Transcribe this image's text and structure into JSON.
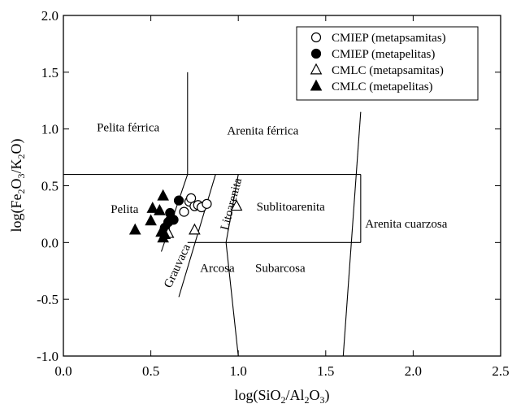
{
  "chart_data": {
    "type": "scatter",
    "title": "",
    "xlabel": "log(SiO2/Al2O3)",
    "ylabel": "log(Fe2O3/K2O)",
    "xlim": [
      0.0,
      2.5
    ],
    "ylim": [
      -1.0,
      2.0
    ],
    "x_ticks": [
      "0.0",
      "0.5",
      "1.0",
      "1.5",
      "2.0",
      "2.5"
    ],
    "y_ticks": [
      "-1.0",
      "-0.5",
      "0.0",
      "0.5",
      "1.0",
      "1.5",
      "2.0"
    ],
    "grid": false,
    "legend_position": "top-right",
    "field_labels": [
      {
        "text": "Pelita férrica",
        "x": 0.37,
        "y": 0.98,
        "rotate": 0
      },
      {
        "text": "Arenita férrica",
        "x": 1.14,
        "y": 0.95,
        "rotate": 0
      },
      {
        "text": "Pelita",
        "x": 0.35,
        "y": 0.26,
        "rotate": 0
      },
      {
        "text": "Litoarenita",
        "x": 0.98,
        "y": 0.33,
        "rotate": -75
      },
      {
        "text": "Sublitoarenita",
        "x": 1.3,
        "y": 0.28,
        "rotate": 0
      },
      {
        "text": "Arenita cuarzosa",
        "x": 1.96,
        "y": 0.13,
        "rotate": 0
      },
      {
        "text": "Grauvaca",
        "x": 0.67,
        "y": -0.22,
        "rotate": -65
      },
      {
        "text": "Arcosa",
        "x": 0.88,
        "y": -0.26,
        "rotate": 0
      },
      {
        "text": "Subarcosa",
        "x": 1.24,
        "y": -0.26,
        "rotate": 0
      }
    ],
    "boundary_lines": [
      [
        [
          0.0,
          0.6
        ],
        [
          1.7,
          0.6
        ]
      ],
      [
        [
          0.71,
          1.5
        ],
        [
          0.71,
          0.6
        ]
      ],
      [
        [
          0.71,
          0.0
        ],
        [
          1.7,
          0.0
        ]
      ],
      [
        [
          1.7,
          0.6
        ],
        [
          1.7,
          0.0
        ]
      ],
      [
        [
          1.7,
          1.15
        ],
        [
          1.6,
          -1.0
        ]
      ],
      [
        [
          1.0,
          0.6
        ],
        [
          0.93,
          0.0
        ]
      ],
      [
        [
          0.93,
          0.0
        ],
        [
          1.0,
          -1.0
        ]
      ],
      [
        [
          0.87,
          0.6
        ],
        [
          0.66,
          -0.48
        ]
      ],
      [
        [
          0.71,
          0.6
        ],
        [
          0.56,
          -0.08
        ]
      ]
    ],
    "series": [
      {
        "name": "CMIEP (metapsamitas)",
        "marker": "circle",
        "filled": false,
        "points": [
          [
            0.69,
            0.27
          ],
          [
            0.72,
            0.36
          ],
          [
            0.73,
            0.39
          ],
          [
            0.75,
            0.32
          ],
          [
            0.77,
            0.33
          ],
          [
            0.79,
            0.31
          ],
          [
            0.82,
            0.34
          ]
        ]
      },
      {
        "name": "CMIEP (metapelitas)",
        "marker": "circle",
        "filled": true,
        "points": [
          [
            0.66,
            0.37
          ],
          [
            0.61,
            0.26
          ],
          [
            0.63,
            0.2
          ],
          [
            0.6,
            0.18
          ],
          [
            0.58,
            0.13
          ]
        ]
      },
      {
        "name": "CMLC (metapsamitas)",
        "marker": "triangle",
        "filled": false,
        "points": [
          [
            0.6,
            0.08
          ],
          [
            0.75,
            0.11
          ],
          [
            0.99,
            0.32
          ]
        ]
      },
      {
        "name": "CMLC (metapelitas)",
        "marker": "triangle",
        "filled": true,
        "points": [
          [
            0.41,
            0.11
          ],
          [
            0.5,
            0.19
          ],
          [
            0.51,
            0.3
          ],
          [
            0.55,
            0.28
          ],
          [
            0.57,
            0.41
          ],
          [
            0.56,
            0.09
          ],
          [
            0.57,
            0.04
          ],
          [
            0.58,
            0.07
          ],
          [
            0.6,
            0.2
          ]
        ]
      }
    ]
  }
}
